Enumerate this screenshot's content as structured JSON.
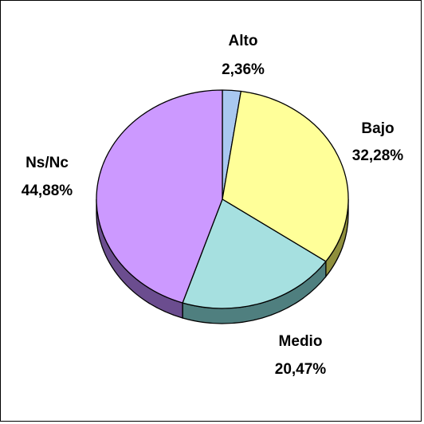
{
  "chart_data": {
    "type": "pie",
    "style": "3d",
    "title": "",
    "slices": [
      {
        "label": "Alto",
        "value": 2.36,
        "display": "2,36%",
        "color": "#a9c8f0",
        "side_color": "#5e7d9e"
      },
      {
        "label": "Bajo",
        "value": 32.28,
        "display": "32,28%",
        "color": "#ffff99",
        "side_color": "#8f8f3c"
      },
      {
        "label": "Medio",
        "value": 20.47,
        "display": "20,47%",
        "color": "#a6e0e0",
        "side_color": "#4f7f7f"
      },
      {
        "label": "Ns/Nc",
        "value": 44.88,
        "display": "44,88%",
        "color": "#cc99ff",
        "side_color": "#6b4d8f"
      }
    ]
  }
}
